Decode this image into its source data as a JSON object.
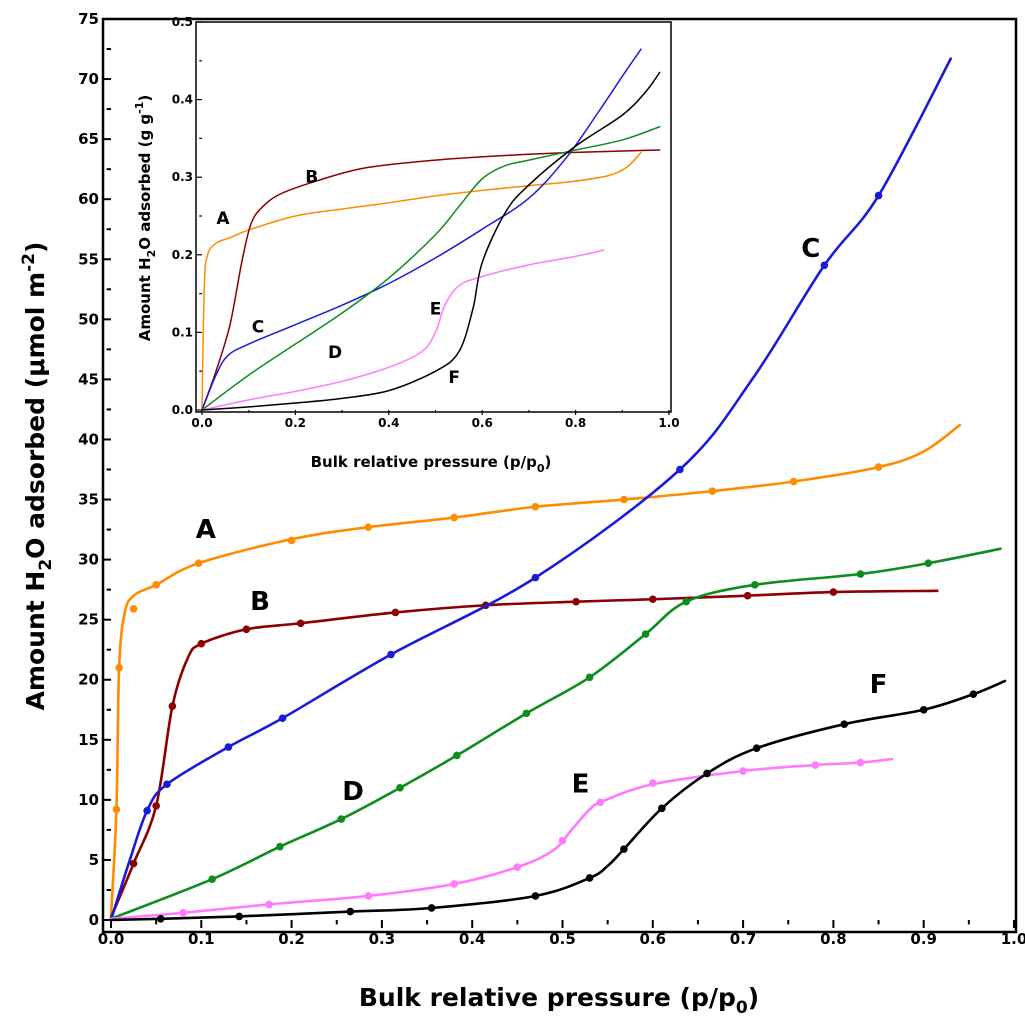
{
  "chart_data": [
    {
      "type": "line",
      "xlabel": "Bulk relative pressure (p/p",
      "xlabel_sub": "0",
      "xlabel_end": ")",
      "ylabel": "Amount H",
      "ylabel_sub": "2",
      "ylabel_mid": "O adsorbed (μmol m",
      "ylabel_sup": "-2",
      "ylabel_end": ")",
      "xlim": [
        0.0,
        1.0
      ],
      "ylim": [
        0,
        75
      ],
      "xticks": [
        0.0,
        0.1,
        0.2,
        0.3,
        0.4,
        0.5,
        0.6,
        0.7,
        0.8,
        0.9,
        1.0
      ],
      "xtick_labels": [
        "0.0",
        "0.1",
        "0.2",
        "0.3",
        "0.4",
        "0.5",
        "0.6",
        "0.7",
        "0.8",
        "0.9",
        "1.0"
      ],
      "yticks": [
        0,
        5,
        10,
        15,
        20,
        25,
        30,
        35,
        40,
        45,
        50,
        55,
        60,
        65,
        70,
        75
      ],
      "ytick_labels": [
        "0",
        "5",
        "10",
        "15",
        "20",
        "25",
        "30",
        "35",
        "40",
        "45",
        "50",
        "55",
        "60",
        "65",
        "70",
        "75"
      ],
      "grid": false,
      "series": [
        {
          "name": "A",
          "color": "#ff8c00",
          "label_pos": [
            0.105,
            31.8
          ],
          "x": [
            0.0,
            0.006,
            0.009,
            0.015,
            0.025,
            0.05,
            0.097,
            0.2,
            0.285,
            0.38,
            0.47,
            0.568,
            0.666,
            0.756,
            0.85,
            0.9,
            0.94
          ],
          "y": [
            0.3,
            9.2,
            21.0,
            25.5,
            27.0,
            27.9,
            29.7,
            31.7,
            32.7,
            33.5,
            34.4,
            35.0,
            35.7,
            36.5,
            37.7,
            39.0,
            41.2
          ],
          "markers": [
            [
              0.006,
              9.2
            ],
            [
              0.009,
              21.0
            ],
            [
              0.025,
              25.9
            ],
            [
              0.05,
              27.9
            ],
            [
              0.097,
              29.7
            ],
            [
              0.2,
              31.6
            ],
            [
              0.285,
              32.7
            ],
            [
              0.38,
              33.5
            ],
            [
              0.47,
              34.4
            ],
            [
              0.568,
              35.0
            ],
            [
              0.666,
              35.7
            ],
            [
              0.756,
              36.5
            ],
            [
              0.85,
              37.7
            ]
          ]
        },
        {
          "name": "B",
          "color": "#8b0000",
          "label_pos": [
            0.165,
            25.8
          ],
          "x": [
            0.0,
            0.025,
            0.05,
            0.068,
            0.085,
            0.1,
            0.15,
            0.21,
            0.315,
            0.415,
            0.515,
            0.6,
            0.705,
            0.8,
            0.915
          ],
          "y": [
            0.2,
            4.7,
            9.5,
            17.8,
            21.8,
            23.0,
            24.2,
            24.7,
            25.6,
            26.2,
            26.5,
            26.7,
            27.0,
            27.3,
            27.4
          ],
          "markers": [
            [
              0.025,
              4.7
            ],
            [
              0.05,
              9.5
            ],
            [
              0.068,
              17.8
            ],
            [
              0.1,
              23.0
            ],
            [
              0.15,
              24.2
            ],
            [
              0.21,
              24.7
            ],
            [
              0.315,
              25.6
            ],
            [
              0.415,
              26.2
            ],
            [
              0.515,
              26.5
            ],
            [
              0.6,
              26.7
            ],
            [
              0.705,
              27.0
            ],
            [
              0.8,
              27.3
            ]
          ]
        },
        {
          "name": "C",
          "color": "#1a1adb",
          "label_pos": [
            0.775,
            55.2
          ],
          "x": [
            0.0,
            0.02,
            0.04,
            0.062,
            0.13,
            0.19,
            0.31,
            0.47,
            0.63,
            0.71,
            0.79,
            0.85,
            0.93
          ],
          "y": [
            0.0,
            4.8,
            9.1,
            11.3,
            14.4,
            16.8,
            22.1,
            28.5,
            37.5,
            45.0,
            54.5,
            60.3,
            71.7
          ],
          "markers": [
            [
              0.04,
              9.1
            ],
            [
              0.062,
              11.3
            ],
            [
              0.13,
              14.4
            ],
            [
              0.19,
              16.8
            ],
            [
              0.31,
              22.1
            ],
            [
              0.47,
              28.5
            ],
            [
              0.63,
              37.5
            ],
            [
              0.79,
              54.5
            ],
            [
              0.85,
              60.3
            ]
          ]
        },
        {
          "name": "D",
          "color": "#0e8c1e",
          "label_pos": [
            0.268,
            10.0
          ],
          "x": [
            0.0,
            0.112,
            0.187,
            0.255,
            0.32,
            0.383,
            0.46,
            0.53,
            0.592,
            0.637,
            0.713,
            0.83,
            0.905,
            0.985
          ],
          "y": [
            0.1,
            3.4,
            6.1,
            8.4,
            11.0,
            13.7,
            17.2,
            20.2,
            23.8,
            26.5,
            27.9,
            28.8,
            29.7,
            30.9
          ],
          "markers": [
            [
              0.112,
              3.4
            ],
            [
              0.187,
              6.1
            ],
            [
              0.255,
              8.4
            ],
            [
              0.32,
              11.0
            ],
            [
              0.383,
              13.7
            ],
            [
              0.46,
              17.2
            ],
            [
              0.53,
              20.2
            ],
            [
              0.592,
              23.8
            ],
            [
              0.637,
              26.5
            ],
            [
              0.713,
              27.9
            ],
            [
              0.83,
              28.8
            ],
            [
              0.905,
              29.7
            ]
          ]
        },
        {
          "name": "E",
          "color": "#ff7aff",
          "label_pos": [
            0.52,
            10.6
          ],
          "x": [
            0.0,
            0.08,
            0.175,
            0.285,
            0.38,
            0.45,
            0.49,
            0.51,
            0.53,
            0.545,
            0.6,
            0.7,
            0.78,
            0.83,
            0.865
          ],
          "y": [
            0.1,
            0.6,
            1.3,
            2.0,
            3.0,
            4.4,
            5.8,
            7.5,
            9.2,
            9.9,
            11.3,
            12.4,
            12.9,
            13.1,
            13.4
          ],
          "markers": [
            [
              0.08,
              0.6
            ],
            [
              0.175,
              1.3
            ],
            [
              0.285,
              2.0
            ],
            [
              0.38,
              3.0
            ],
            [
              0.45,
              4.4
            ],
            [
              0.5,
              6.6
            ],
            [
              0.542,
              9.8
            ],
            [
              0.6,
              11.4
            ],
            [
              0.7,
              12.4
            ],
            [
              0.78,
              12.9
            ],
            [
              0.83,
              13.1
            ]
          ]
        },
        {
          "name": "F",
          "color": "#000000",
          "label_pos": [
            0.85,
            18.9
          ],
          "x": [
            0.0,
            0.055,
            0.142,
            0.265,
            0.355,
            0.47,
            0.53,
            0.55,
            0.568,
            0.61,
            0.66,
            0.715,
            0.812,
            0.9,
            0.955,
            0.99
          ],
          "y": [
            0.0,
            0.1,
            0.3,
            0.7,
            1.0,
            2.0,
            3.5,
            4.5,
            5.9,
            9.3,
            12.2,
            14.3,
            16.3,
            17.5,
            18.8,
            19.9
          ],
          "markers": [
            [
              0.055,
              0.1
            ],
            [
              0.142,
              0.3
            ],
            [
              0.265,
              0.7
            ],
            [
              0.355,
              1.0
            ],
            [
              0.47,
              2.0
            ],
            [
              0.53,
              3.5
            ],
            [
              0.568,
              5.9
            ],
            [
              0.61,
              9.3
            ],
            [
              0.66,
              12.2
            ],
            [
              0.715,
              14.3
            ],
            [
              0.812,
              16.3
            ],
            [
              0.9,
              17.5
            ],
            [
              0.955,
              18.8
            ]
          ]
        }
      ]
    },
    {
      "type": "line",
      "xlabel": "Bulk relative pressure (p/p",
      "xlabel_sub": "0",
      "xlabel_end": ")",
      "ylabel": "Amount H",
      "ylabel_sub": "2",
      "ylabel_mid": "O adsorbed (g g",
      "ylabel_sup": "-1",
      "ylabel_end": ")",
      "xlim": [
        0.0,
        1.0
      ],
      "ylim": [
        0.0,
        0.5
      ],
      "xticks": [
        0.0,
        0.2,
        0.4,
        0.6,
        0.8,
        1.0
      ],
      "xtick_labels": [
        "0.0",
        "0.2",
        "0.4",
        "0.6",
        "0.8",
        "1.0"
      ],
      "yticks": [
        0.0,
        0.1,
        0.2,
        0.3,
        0.4,
        0.5
      ],
      "ytick_labels": [
        "0.0",
        "0.1",
        "0.2",
        "0.3",
        "0.4",
        "0.5"
      ],
      "grid": false,
      "series": [
        {
          "name": "A",
          "color": "#ff8c00",
          "label_pos": [
            0.045,
            0.24
          ],
          "x": [
            0.0,
            0.005,
            0.012,
            0.03,
            0.06,
            0.1,
            0.2,
            0.3,
            0.4,
            0.5,
            0.6,
            0.7,
            0.8,
            0.87,
            0.91,
            0.94
          ],
          "y": [
            0.0,
            0.16,
            0.2,
            0.215,
            0.222,
            0.232,
            0.25,
            0.259,
            0.267,
            0.276,
            0.283,
            0.289,
            0.295,
            0.302,
            0.313,
            0.332
          ]
        },
        {
          "name": "B",
          "color": "#8b0000",
          "label_pos": [
            0.235,
            0.293
          ],
          "x": [
            0.0,
            0.03,
            0.06,
            0.085,
            0.105,
            0.13,
            0.17,
            0.25,
            0.35,
            0.5,
            0.65,
            0.8,
            0.98
          ],
          "y": [
            0.0,
            0.05,
            0.11,
            0.19,
            0.24,
            0.262,
            0.279,
            0.296,
            0.312,
            0.322,
            0.328,
            0.332,
            0.335
          ]
        },
        {
          "name": "C",
          "color": "#1a1adb",
          "label_pos": [
            0.12,
            0.1
          ],
          "x": [
            0.0,
            0.03,
            0.055,
            0.1,
            0.2,
            0.3,
            0.4,
            0.5,
            0.6,
            0.7,
            0.78,
            0.85,
            0.9,
            0.94
          ],
          "y": [
            0.0,
            0.045,
            0.07,
            0.085,
            0.11,
            0.135,
            0.163,
            0.196,
            0.233,
            0.273,
            0.325,
            0.385,
            0.43,
            0.465
          ]
        },
        {
          "name": "D",
          "color": "#0e8c1e",
          "label_pos": [
            0.285,
            0.067
          ],
          "x": [
            0.0,
            0.1,
            0.2,
            0.3,
            0.4,
            0.5,
            0.55,
            0.6,
            0.65,
            0.7,
            0.8,
            0.9,
            0.98
          ],
          "y": [
            0.0,
            0.045,
            0.085,
            0.125,
            0.17,
            0.226,
            0.262,
            0.298,
            0.315,
            0.322,
            0.335,
            0.348,
            0.365
          ]
        },
        {
          "name": "E",
          "color": "#ff7aff",
          "label_pos": [
            0.5,
            0.123
          ],
          "x": [
            0.0,
            0.1,
            0.2,
            0.3,
            0.4,
            0.47,
            0.5,
            0.52,
            0.55,
            0.6,
            0.7,
            0.8,
            0.86
          ],
          "y": [
            0.0,
            0.013,
            0.024,
            0.037,
            0.055,
            0.075,
            0.1,
            0.135,
            0.16,
            0.172,
            0.187,
            0.198,
            0.206
          ]
        },
        {
          "name": "F",
          "color": "#000000",
          "label_pos": [
            0.54,
            0.035
          ],
          "x": [
            0.0,
            0.1,
            0.2,
            0.3,
            0.4,
            0.5,
            0.55,
            0.58,
            0.6,
            0.65,
            0.7,
            0.8,
            0.9,
            0.95,
            0.98
          ],
          "y": [
            0.0,
            0.004,
            0.009,
            0.015,
            0.025,
            0.05,
            0.075,
            0.13,
            0.19,
            0.255,
            0.29,
            0.34,
            0.38,
            0.41,
            0.435
          ]
        }
      ]
    }
  ]
}
